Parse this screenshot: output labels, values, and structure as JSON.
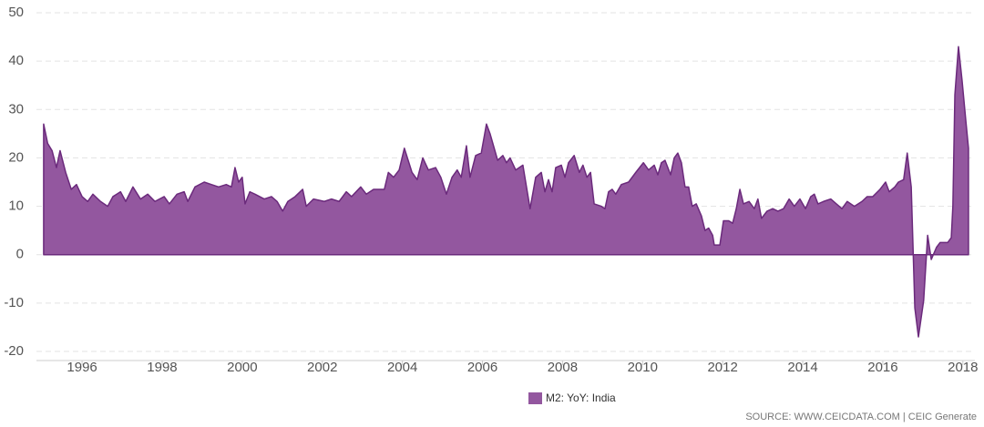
{
  "chart_data": {
    "type": "area",
    "x": [
      1995.04,
      1995.14,
      1995.25,
      1995.36,
      1995.45,
      1995.59,
      1995.73,
      1995.86,
      1996.0,
      1996.14,
      1996.27,
      1996.46,
      1996.64,
      1996.77,
      1996.96,
      1997.09,
      1997.27,
      1997.46,
      1997.64,
      1997.82,
      1998.05,
      1998.18,
      1998.37,
      1998.55,
      1998.64,
      1998.82,
      1999.05,
      1999.23,
      1999.41,
      1999.6,
      1999.73,
      1999.82,
      1999.91,
      2000.0,
      2000.07,
      2000.19,
      2000.32,
      2000.55,
      2000.73,
      2000.87,
      2001.01,
      2001.14,
      2001.32,
      2001.51,
      2001.6,
      2001.78,
      2002.05,
      2002.23,
      2002.42,
      2002.6,
      2002.73,
      2002.96,
      2003.1,
      2003.28,
      2003.55,
      2003.65,
      2003.78,
      2003.92,
      2004.05,
      2004.24,
      2004.37,
      2004.51,
      2004.65,
      2004.83,
      2004.96,
      2005.1,
      2005.24,
      2005.37,
      2005.47,
      2005.6,
      2005.69,
      2005.83,
      2005.97,
      2006.1,
      2006.19,
      2006.38,
      2006.51,
      2006.6,
      2006.69,
      2006.83,
      2007.01,
      2007.1,
      2007.19,
      2007.33,
      2007.47,
      2007.56,
      2007.65,
      2007.74,
      2007.83,
      2007.97,
      2008.06,
      2008.15,
      2008.29,
      2008.42,
      2008.51,
      2008.61,
      2008.7,
      2008.79,
      2008.97,
      2009.06,
      2009.15,
      2009.24,
      2009.33,
      2009.47,
      2009.65,
      2009.83,
      2010.02,
      2010.15,
      2010.29,
      2010.38,
      2010.47,
      2010.56,
      2010.7,
      2010.79,
      2010.88,
      2010.97,
      2011.06,
      2011.15,
      2011.24,
      2011.34,
      2011.47,
      2011.56,
      2011.65,
      2011.75,
      2011.79,
      2011.93,
      2012.02,
      2012.15,
      2012.25,
      2012.34,
      2012.43,
      2012.52,
      2012.66,
      2012.79,
      2012.88,
      2012.97,
      2013.11,
      2013.25,
      2013.38,
      2013.52,
      2013.66,
      2013.79,
      2013.93,
      2014.07,
      2014.2,
      2014.29,
      2014.38,
      2014.52,
      2014.7,
      2014.84,
      2014.98,
      2015.11,
      2015.29,
      2015.48,
      2015.61,
      2015.75,
      2015.93,
      2016.07,
      2016.16,
      2016.3,
      2016.39,
      2016.52,
      2016.61,
      2016.71,
      2016.8,
      2016.89,
      2017.02,
      2017.12,
      2017.21,
      2017.34,
      2017.43,
      2017.62,
      2017.71,
      2017.75,
      2017.8,
      2017.89,
      2017.98,
      2018.07,
      2018.14
    ],
    "series": [
      {
        "name": "M2: YoY: India",
        "color": "#93579f",
        "line_color": "#6b2a7c",
        "values": [
          27,
          23,
          21.5,
          18,
          21.5,
          17,
          13.5,
          14.5,
          12,
          11,
          12.5,
          11,
          10,
          12,
          13,
          11,
          14,
          11.5,
          12.5,
          11,
          12,
          10.5,
          12.5,
          13,
          11,
          14,
          15,
          14.5,
          14,
          14.5,
          14,
          18,
          15,
          16,
          10.5,
          13,
          12.5,
          11.5,
          12,
          11,
          9,
          11,
          12,
          13.5,
          10,
          11.5,
          11,
          11.5,
          11,
          13,
          12,
          14,
          12.5,
          13.5,
          13.5,
          17,
          16,
          17.5,
          22,
          17,
          15.5,
          20,
          17.5,
          18,
          16,
          12.5,
          16,
          17.5,
          16,
          22.5,
          16,
          20.5,
          21,
          27,
          25,
          19.5,
          20.5,
          19,
          20,
          17.5,
          18.5,
          14,
          9.5,
          16,
          17,
          13,
          15.5,
          13,
          18,
          18.5,
          16,
          19,
          20.5,
          17,
          18.5,
          16,
          17,
          10.5,
          10,
          9.5,
          13,
          13.5,
          12.5,
          14.5,
          15,
          17,
          19,
          17.5,
          18.5,
          16.5,
          19,
          19.5,
          16.5,
          20,
          21,
          19,
          14,
          14,
          10,
          10.5,
          8,
          5,
          5.5,
          4,
          2,
          2,
          7,
          7,
          6.5,
          9.5,
          13.5,
          10.5,
          11,
          9.5,
          11.5,
          7.5,
          9,
          9.5,
          9,
          9.5,
          11.5,
          10,
          11.5,
          9.5,
          12,
          12.5,
          10.5,
          11,
          11.5,
          10.5,
          9.5,
          11,
          10,
          11,
          12,
          12,
          13.5,
          15,
          13,
          14,
          15,
          15.5,
          21,
          14,
          -11,
          -17,
          -9.5,
          4,
          -1,
          1.5,
          2.5,
          2.5,
          3.5,
          10,
          33,
          43,
          36,
          28,
          22
        ]
      }
    ],
    "xlim": [
      1994.86,
      2018.3
    ],
    "xticks": [
      1996,
      1998,
      2000,
      2002,
      2004,
      2006,
      2008,
      2010,
      2012,
      2014,
      2016,
      2018
    ],
    "ylim": [
      -20,
      50
    ],
    "yticks": [
      -20,
      -10,
      0,
      10,
      20,
      30,
      40,
      50
    ],
    "grid": true,
    "legend": "bottom",
    "source": "SOURCE: WWW.CEICDATA.COM | CEIC Generate"
  }
}
